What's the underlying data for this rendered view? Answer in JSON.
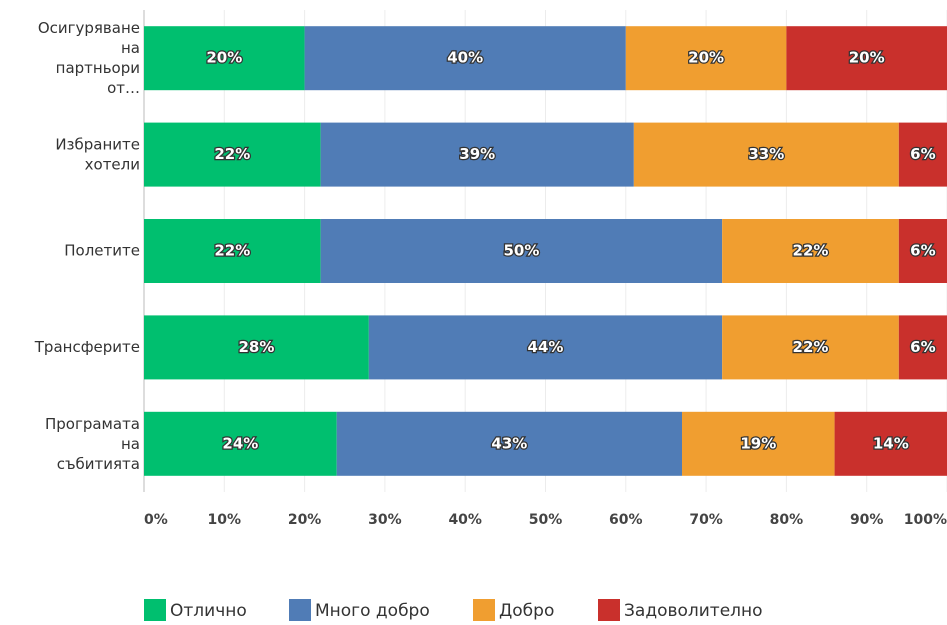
{
  "chart_data": {
    "type": "stacked_bar_horizontal",
    "categories": [
      "Осигуряване на партньори от…",
      "Избраните хотели",
      "Полетите",
      "Трансферите",
      "Програмата на събитията"
    ],
    "series": [
      {
        "name": "Отлично",
        "color": "#00bf6f",
        "values": [
          20,
          22,
          22,
          28,
          24
        ],
        "value_labels": [
          "20%",
          "22%",
          "22%",
          "28%",
          "24%"
        ]
      },
      {
        "name": "Много добро",
        "color": "#507cb6",
        "values": [
          40,
          39,
          50,
          44,
          43
        ],
        "value_labels": [
          "40%",
          "39%",
          "50%",
          "44%",
          "43%"
        ]
      },
      {
        "name": "Добро",
        "color": "#f09e30",
        "values": [
          20,
          33,
          22,
          22,
          19
        ],
        "value_labels": [
          "20%",
          "33%",
          "22%",
          "22%",
          "19%"
        ]
      },
      {
        "name": "Задоволително",
        "color": "#c9302c",
        "values": [
          20,
          6,
          6,
          6,
          14
        ],
        "value_labels": [
          "20%",
          "6%",
          "6%",
          "6%",
          "14%"
        ]
      }
    ],
    "xlim": [
      0,
      100
    ],
    "xticks": [
      {
        "value": 0,
        "label": "0%"
      },
      {
        "value": 10,
        "label": "10%"
      },
      {
        "value": 20,
        "label": "20%"
      },
      {
        "value": 30,
        "label": "30%"
      },
      {
        "value": 40,
        "label": "40%"
      },
      {
        "value": 50,
        "label": "50%"
      },
      {
        "value": 60,
        "label": "60%"
      },
      {
        "value": 70,
        "label": "70%"
      },
      {
        "value": 80,
        "label": "80%"
      },
      {
        "value": 90,
        "label": "90%"
      },
      {
        "value": 100,
        "label": "100%"
      }
    ],
    "grid": true,
    "legend": "bottom"
  }
}
